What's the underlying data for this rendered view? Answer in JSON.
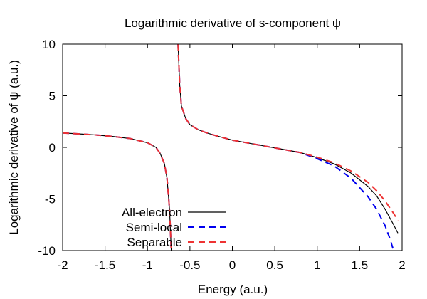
{
  "chart_data": {
    "type": "line",
    "title": "Logarithmic derivative of s-component ψ",
    "xlabel": "Energy (a.u.)",
    "ylabel": "Logarithmic derivative of ψ (a.u.)",
    "xlim": [
      -2,
      2
    ],
    "ylim": [
      -10,
      10
    ],
    "x_ticks": [
      -2,
      -1.5,
      -1,
      -0.5,
      0,
      0.5,
      1,
      1.5,
      2
    ],
    "y_ticks": [
      -10,
      -5,
      0,
      5,
      10
    ],
    "x_tick_labels": [
      "-2",
      "-1.5",
      "-1",
      "-0.5",
      "0",
      "0.5",
      "1",
      "1.5",
      "2"
    ],
    "y_tick_labels": [
      "-10",
      "-5",
      "0",
      "5",
      "10"
    ],
    "grid": false,
    "legend_position": "bottom-left",
    "series": [
      {
        "name": "All-electron",
        "color": "#000000",
        "dash": "solid",
        "segments": [
          [
            [
              -2.0,
              1.4
            ],
            [
              -1.8,
              1.3
            ],
            [
              -1.6,
              1.2
            ],
            [
              -1.4,
              1.05
            ],
            [
              -1.2,
              0.85
            ],
            [
              -1.0,
              0.45
            ],
            [
              -0.9,
              0.0
            ],
            [
              -0.85,
              -0.6
            ],
            [
              -0.8,
              -1.6
            ],
            [
              -0.77,
              -3.0
            ],
            [
              -0.74,
              -6.0
            ],
            [
              -0.72,
              -10.0
            ]
          ],
          [
            [
              -0.64,
              10.0
            ],
            [
              -0.62,
              6.0
            ],
            [
              -0.6,
              4.0
            ],
            [
              -0.55,
              2.8
            ],
            [
              -0.5,
              2.2
            ],
            [
              -0.4,
              1.7
            ],
            [
              -0.3,
              1.4
            ],
            [
              -0.2,
              1.15
            ],
            [
              0.0,
              0.7
            ],
            [
              0.2,
              0.4
            ],
            [
              0.4,
              0.1
            ],
            [
              0.6,
              -0.2
            ],
            [
              0.8,
              -0.5
            ],
            [
              1.0,
              -1.0
            ],
            [
              1.2,
              -1.6
            ],
            [
              1.4,
              -2.5
            ],
            [
              1.6,
              -3.8
            ],
            [
              1.7,
              -4.7
            ],
            [
              1.8,
              -6.0
            ],
            [
              1.9,
              -7.5
            ],
            [
              1.95,
              -8.3
            ]
          ]
        ]
      },
      {
        "name": "Semi-local",
        "color": "#0000ee",
        "dash": "dashed",
        "segments": [
          [
            [
              -2.0,
              1.4
            ],
            [
              -1.8,
              1.3
            ],
            [
              -1.6,
              1.2
            ],
            [
              -1.4,
              1.05
            ],
            [
              -1.2,
              0.85
            ],
            [
              -1.0,
              0.45
            ],
            [
              -0.9,
              0.0
            ],
            [
              -0.85,
              -0.6
            ],
            [
              -0.8,
              -1.6
            ],
            [
              -0.77,
              -3.0
            ],
            [
              -0.74,
              -6.0
            ],
            [
              -0.72,
              -10.0
            ]
          ],
          [
            [
              -0.64,
              10.0
            ],
            [
              -0.62,
              6.0
            ],
            [
              -0.6,
              4.0
            ],
            [
              -0.55,
              2.8
            ],
            [
              -0.5,
              2.2
            ],
            [
              -0.4,
              1.7
            ],
            [
              -0.3,
              1.4
            ],
            [
              -0.2,
              1.15
            ],
            [
              0.0,
              0.7
            ],
            [
              0.2,
              0.4
            ],
            [
              0.4,
              0.1
            ],
            [
              0.6,
              -0.2
            ],
            [
              0.8,
              -0.5
            ],
            [
              1.0,
              -1.1
            ],
            [
              1.2,
              -1.8
            ],
            [
              1.4,
              -3.0
            ],
            [
              1.6,
              -4.8
            ],
            [
              1.7,
              -6.0
            ],
            [
              1.8,
              -7.6
            ],
            [
              1.85,
              -8.7
            ],
            [
              1.9,
              -10.0
            ]
          ]
        ]
      },
      {
        "name": "Separable",
        "color": "#ee3333",
        "dash": "dashed",
        "segments": [
          [
            [
              -2.0,
              1.4
            ],
            [
              -1.8,
              1.3
            ],
            [
              -1.6,
              1.2
            ],
            [
              -1.4,
              1.05
            ],
            [
              -1.2,
              0.85
            ],
            [
              -1.0,
              0.45
            ],
            [
              -0.9,
              0.0
            ],
            [
              -0.85,
              -0.6
            ],
            [
              -0.8,
              -1.6
            ],
            [
              -0.77,
              -3.0
            ],
            [
              -0.74,
              -6.0
            ],
            [
              -0.72,
              -10.0
            ]
          ],
          [
            [
              -0.64,
              10.0
            ],
            [
              -0.62,
              6.0
            ],
            [
              -0.6,
              4.0
            ],
            [
              -0.55,
              2.8
            ],
            [
              -0.5,
              2.2
            ],
            [
              -0.4,
              1.7
            ],
            [
              -0.3,
              1.4
            ],
            [
              -0.2,
              1.15
            ],
            [
              0.0,
              0.7
            ],
            [
              0.2,
              0.4
            ],
            [
              0.4,
              0.1
            ],
            [
              0.6,
              -0.2
            ],
            [
              0.8,
              -0.5
            ],
            [
              1.0,
              -0.95
            ],
            [
              1.2,
              -1.5
            ],
            [
              1.4,
              -2.3
            ],
            [
              1.6,
              -3.4
            ],
            [
              1.7,
              -4.2
            ],
            [
              1.8,
              -5.2
            ],
            [
              1.9,
              -6.4
            ],
            [
              1.95,
              -7.1
            ]
          ]
        ]
      }
    ]
  }
}
